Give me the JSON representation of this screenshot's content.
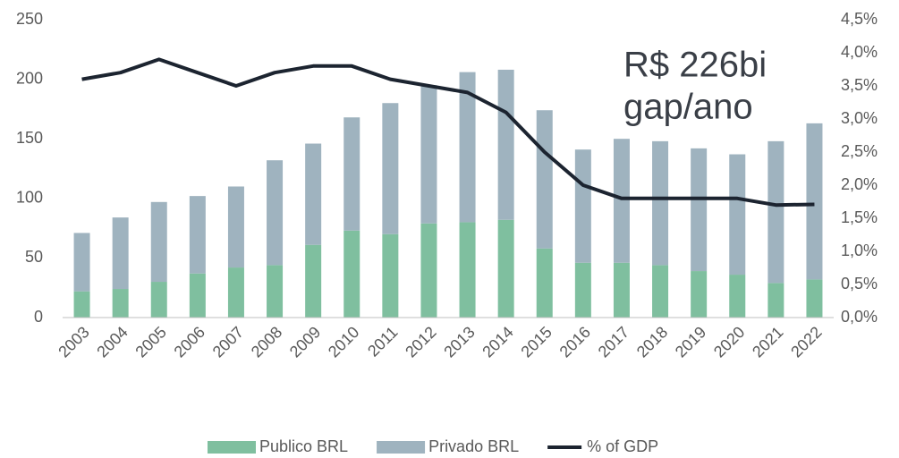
{
  "chart_data": {
    "type": "bar",
    "categories": [
      "2003",
      "2004",
      "2005",
      "2006",
      "2007",
      "2008",
      "2009",
      "2010",
      "2011",
      "2012",
      "2013",
      "2014",
      "2015",
      "2016",
      "2017",
      "2018",
      "2019",
      "2020",
      "2021",
      "2022"
    ],
    "series": [
      {
        "name": "Publico BRL",
        "color": "#7fbf9f",
        "values": [
          22,
          24,
          30,
          37,
          42,
          44,
          61,
          73,
          70,
          79,
          80,
          82,
          58,
          46,
          46,
          44,
          39,
          36,
          29,
          32
        ]
      },
      {
        "name": "Privado BRL",
        "color": "#9fb3bf",
        "values": [
          49,
          60,
          67,
          65,
          68,
          88,
          85,
          95,
          110,
          116,
          126,
          126,
          116,
          95,
          104,
          104,
          103,
          101,
          119,
          131
        ]
      },
      {
        "name": "% of GDP",
        "color": "#1c2430",
        "type": "line",
        "axis": "y2",
        "values": [
          3.6,
          3.7,
          3.9,
          3.7,
          3.5,
          3.7,
          3.8,
          3.8,
          3.6,
          3.5,
          3.4,
          3.1,
          2.5,
          2.0,
          1.8,
          1.8,
          1.8,
          1.8,
          1.7,
          1.71
        ]
      }
    ],
    "stacked": true,
    "ylim": [
      0,
      250
    ],
    "yticks": [
      0,
      50,
      100,
      150,
      200,
      250
    ],
    "y2lim": [
      0,
      4.5
    ],
    "y2ticks": [
      {
        "value": 0,
        "label": "0,0%"
      },
      {
        "value": 0.5,
        "label": "0,5%"
      },
      {
        "value": 1,
        "label": "1,0%"
      },
      {
        "value": 1.5,
        "label": "1,5%"
      },
      {
        "value": 2,
        "label": "2,0%"
      },
      {
        "value": 2.5,
        "label": "2,5%"
      },
      {
        "value": 3,
        "label": "3,0%"
      },
      {
        "value": 3.5,
        "label": "3,5%"
      },
      {
        "value": 4,
        "label": "4,0%"
      },
      {
        "value": 4.5,
        "label": "4,5%"
      }
    ],
    "annotations": [
      "R$ 226bi",
      "gap/ano"
    ],
    "legend": "bottom",
    "grid": false
  }
}
